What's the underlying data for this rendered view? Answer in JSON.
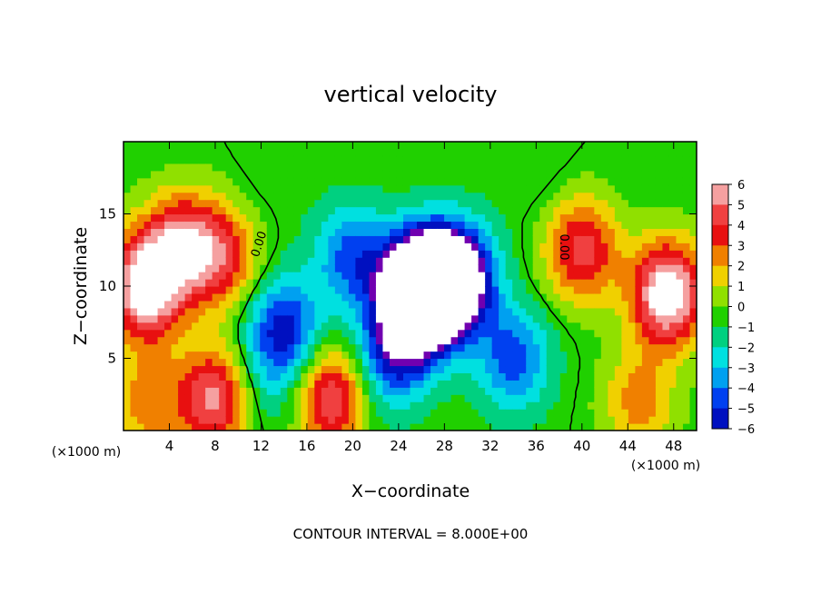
{
  "chart_data": {
    "type": "heatmap",
    "title": "vertical velocity",
    "xlabel": "X−coordinate",
    "ylabel": "Z−coordinate",
    "x_unit_left": "(×1000 m)",
    "x_unit_right": "(×1000 m)",
    "xlim": [
      0,
      50
    ],
    "ylim": [
      0,
      20
    ],
    "x_ticks": [
      4,
      8,
      12,
      16,
      20,
      24,
      28,
      32,
      36,
      40,
      44,
      48
    ],
    "y_ticks": [
      5,
      10,
      15
    ],
    "colorbar": {
      "min": -6,
      "max": 6,
      "ticks": [
        "6",
        "5",
        "4",
        "3",
        "2",
        "1",
        "0",
        "−1",
        "−2",
        "−3",
        "−4",
        "−5",
        "−6"
      ],
      "colors": {
        "6": "#f5a0a0",
        "5": "#f04040",
        "4": "#e81010",
        "3": "#f08000",
        "2": "#f0d000",
        "1": "#90e000",
        "0": "#20d000",
        "-1": "#00d080",
        "-2": "#00e0e0",
        "-3": "#00a0f0",
        "-4": "#0040f0",
        "-5": "#0010c0",
        "-6": "#7000b0"
      },
      "over_under": "#ffffff"
    },
    "zero_contour_labels": [
      "0.00",
      "0.00"
    ],
    "contour_interval_text": "CONTOUR INTERVAL = 8.000E+00",
    "features": [
      {
        "x": 26,
        "z": 9.8,
        "value": -15
      },
      {
        "x": 29,
        "z": 10.5,
        "value": -9
      },
      {
        "x": 2,
        "z": 10,
        "value": 8
      },
      {
        "x": 47.5,
        "z": 9.5,
        "value": 8
      },
      {
        "x": 18.5,
        "z": 2.3,
        "value": 6.5
      },
      {
        "x": 8,
        "z": 2.2,
        "value": 6
      },
      {
        "x": 40,
        "z": 12.5,
        "value": 5
      },
      {
        "x": 5,
        "z": 13,
        "value": 5
      },
      {
        "x": 8.5,
        "z": 12,
        "value": 4.5
      },
      {
        "x": 14,
        "z": 7,
        "value": -5
      },
      {
        "x": 20,
        "z": 12,
        "value": -4
      },
      {
        "x": 34,
        "z": 5,
        "value": -4
      },
      {
        "x": 24,
        "z": 6,
        "value": -5
      },
      {
        "x": 12,
        "z": 3,
        "value": -1.5
      },
      {
        "x": 21,
        "z": 3,
        "value": -2
      },
      {
        "x": 13,
        "z": 18,
        "value": -0.5
      },
      {
        "x": 36,
        "z": 18,
        "value": -0.5
      },
      {
        "x": 45,
        "z": 2,
        "value": 3
      },
      {
        "x": 2,
        "z": 2,
        "value": 3
      }
    ]
  }
}
